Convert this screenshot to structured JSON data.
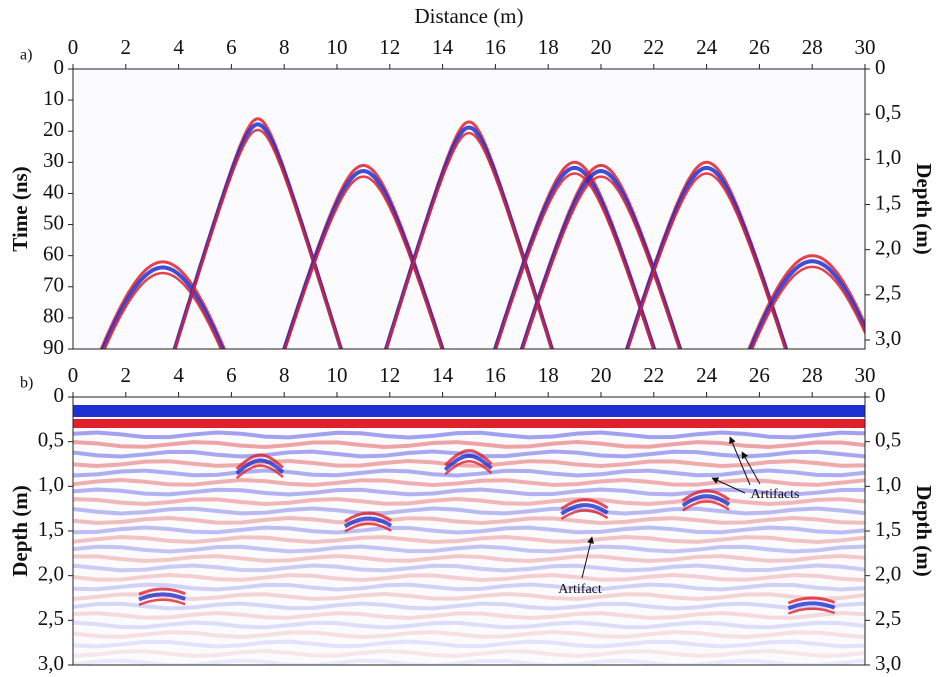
{
  "chart_data": [
    {
      "type": "radargram",
      "panel_label": "a)",
      "xlabel": "Distance (m)",
      "ylabel": "Time (ns)",
      "y2label": "Depth (m)",
      "xlim": [
        0,
        30
      ],
      "xticks": [
        0,
        2,
        4,
        6,
        8,
        10,
        12,
        14,
        16,
        18,
        20,
        22,
        24,
        26,
        28,
        30
      ],
      "ylim": [
        0,
        90
      ],
      "yticks": [
        0,
        10,
        20,
        30,
        40,
        50,
        60,
        70,
        80,
        90
      ],
      "y_inverted": true,
      "y2lim": [
        0,
        3.1
      ],
      "y2ticks": [
        0,
        {
          "value": 0.5,
          "label": "0,5"
        },
        {
          "value": 1.0,
          "label": "1,0"
        },
        {
          "value": 1.5,
          "label": "1,5"
        },
        {
          "value": 2.0,
          "label": "2,0"
        },
        {
          "value": 2.5,
          "label": "2,5"
        },
        {
          "value": 3.0,
          "label": "3,0"
        }
      ],
      "apex_x": [
        3.4,
        7,
        11,
        15,
        19,
        20,
        24,
        28
      ],
      "apex_y": [
        62,
        16,
        31,
        17,
        30,
        31,
        30,
        60
      ]
    },
    {
      "type": "radargram",
      "panel_label": "b)",
      "ylabel": "Depth (m)",
      "y2label": "Depth (m)",
      "xlim": [
        0,
        30
      ],
      "xticks": [
        0,
        2,
        4,
        6,
        8,
        10,
        12,
        14,
        16,
        18,
        20,
        22,
        24,
        26,
        28,
        30
      ],
      "ylim": [
        0,
        3
      ],
      "yticks": [
        0,
        {
          "value": 0.5,
          "label": "0,5"
        },
        {
          "value": 1.0,
          "label": "1,0"
        },
        {
          "value": 1.5,
          "label": "1,5"
        },
        {
          "value": 2.0,
          "label": "2,0"
        },
        {
          "value": 2.5,
          "label": "2,5"
        },
        {
          "value": 3.0,
          "label": "3,0"
        }
      ],
      "y_inverted": true,
      "y2lim": [
        0,
        3
      ],
      "y2ticks": [
        0,
        {
          "value": 0.5,
          "label": "0,5"
        },
        {
          "value": 1.0,
          "label": "1,0"
        },
        {
          "value": 1.5,
          "label": "1,5"
        },
        {
          "value": 2.0,
          "label": "2,0"
        },
        {
          "value": 2.5,
          "label": "2,5"
        },
        {
          "value": 3.0,
          "label": "3,0"
        }
      ],
      "apex_x": [
        3.4,
        7.1,
        11.2,
        15,
        19.4,
        24,
        28
      ],
      "apex_y": [
        2.15,
        0.65,
        1.3,
        0.6,
        1.15,
        1.05,
        2.25
      ],
      "annotations": [
        "Artifact",
        "Artifacts"
      ]
    }
  ]
}
